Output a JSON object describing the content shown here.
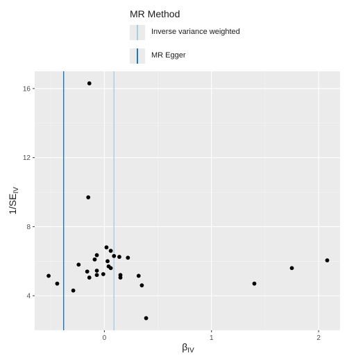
{
  "chart_data": {
    "type": "scatter",
    "xlabel_main": "β",
    "xlabel_sub": "IV",
    "ylabel_main": "1/SE",
    "ylabel_sub": "IV",
    "xlim": [
      -0.65,
      2.2
    ],
    "ylim": [
      2.0,
      17.0
    ],
    "x_ticks": [
      0,
      1,
      2
    ],
    "x_tick_labels": [
      "0",
      "1",
      "2"
    ],
    "y_ticks": [
      4,
      8,
      12,
      16
    ],
    "y_tick_labels": [
      "4",
      "8",
      "12",
      "16"
    ],
    "grid": true,
    "legend": {
      "title": "MR Method",
      "placement": "top",
      "entries": [
        {
          "label": "Inverse variance weighted",
          "color": "#a6cee3"
        },
        {
          "label": "MR Egger",
          "color": "#1f78b4"
        }
      ]
    },
    "vlines": [
      {
        "method": "Inverse variance weighted",
        "x": 0.09,
        "color": "#a6cee3"
      },
      {
        "method": "MR Egger",
        "x": -0.38,
        "color": "#1f78b4"
      }
    ],
    "points": [
      {
        "x": -0.52,
        "y": 5.15
      },
      {
        "x": -0.44,
        "y": 4.7
      },
      {
        "x": -0.29,
        "y": 4.3
      },
      {
        "x": -0.24,
        "y": 5.8
      },
      {
        "x": -0.16,
        "y": 5.4
      },
      {
        "x": -0.15,
        "y": 9.7
      },
      {
        "x": -0.14,
        "y": 16.3
      },
      {
        "x": -0.14,
        "y": 5.05
      },
      {
        "x": -0.09,
        "y": 6.1
      },
      {
        "x": -0.07,
        "y": 6.35
      },
      {
        "x": -0.07,
        "y": 5.45
      },
      {
        "x": -0.07,
        "y": 5.2
      },
      {
        "x": -0.01,
        "y": 5.25
      },
      {
        "x": 0.02,
        "y": 6.8
      },
      {
        "x": 0.03,
        "y": 6.0
      },
      {
        "x": 0.04,
        "y": 5.7
      },
      {
        "x": 0.06,
        "y": 6.6
      },
      {
        "x": 0.06,
        "y": 5.6
      },
      {
        "x": 0.09,
        "y": 6.3
      },
      {
        "x": 0.14,
        "y": 6.25
      },
      {
        "x": 0.15,
        "y": 5.2
      },
      {
        "x": 0.15,
        "y": 5.05
      },
      {
        "x": 0.22,
        "y": 6.2
      },
      {
        "x": 0.32,
        "y": 5.15
      },
      {
        "x": 0.35,
        "y": 4.6
      },
      {
        "x": 0.39,
        "y": 2.7
      },
      {
        "x": 1.4,
        "y": 4.7
      },
      {
        "x": 1.75,
        "y": 5.6
      },
      {
        "x": 2.08,
        "y": 6.05
      }
    ]
  }
}
